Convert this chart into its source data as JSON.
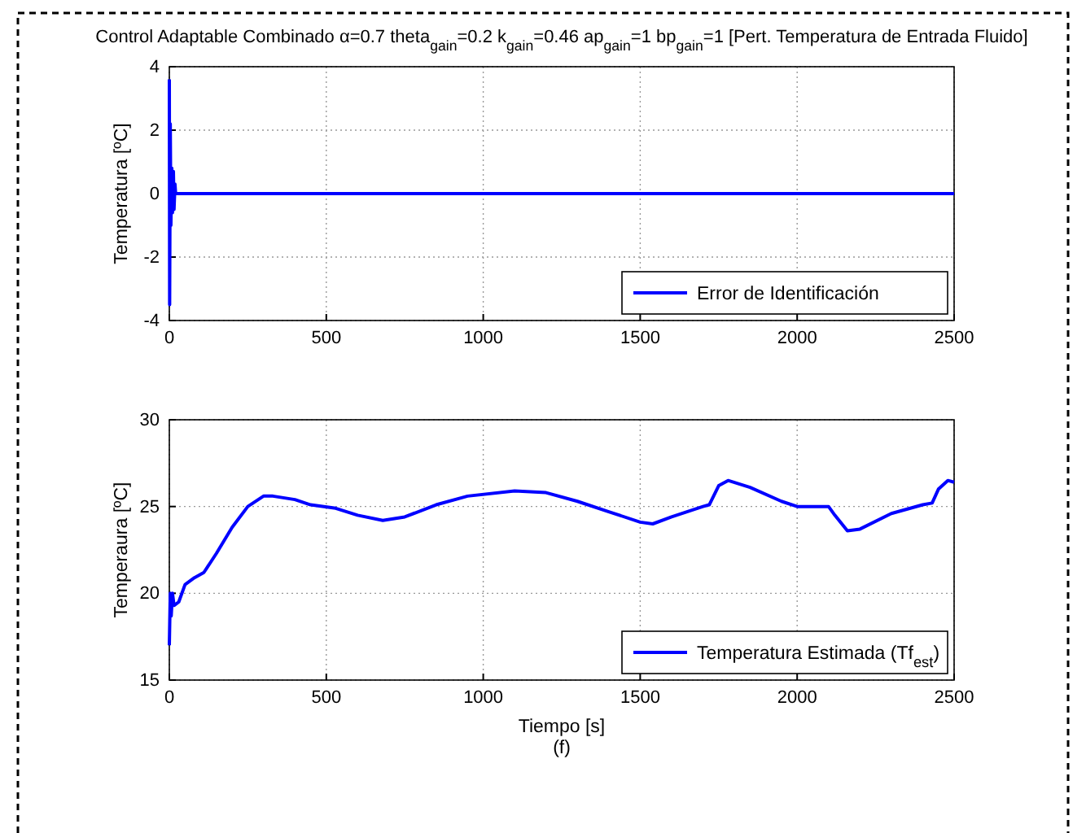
{
  "chart_data": [
    {
      "type": "line",
      "title": "Control Adaptable Combinado α=0.7 theta$_{gain}$=0.2 k$_{gain}$=0.46 ap$_{gain}$=1 bp$_{gain}$=1 [Pert. Temperatura de Entrada Fluido]",
      "ylabel": "Temperatura [ºC]",
      "xlim": [
        0,
        2500
      ],
      "ylim": [
        -4,
        4
      ],
      "xticks": [
        0,
        500,
        1000,
        1500,
        2000,
        2500
      ],
      "yticks": [
        -4,
        -2,
        0,
        2,
        4
      ],
      "grid": true,
      "legend": "bottom right",
      "series": [
        {
          "name": "Error de Identificación",
          "color": "#0000ff",
          "x": [
            0,
            1,
            3,
            5,
            8,
            10,
            13,
            15,
            18,
            20,
            2500
          ],
          "values": [
            3.6,
            -3.5,
            2.2,
            -1,
            0.8,
            -0.6,
            0.7,
            -0.5,
            0.3,
            0,
            0
          ]
        }
      ]
    },
    {
      "type": "line",
      "xlabel": "Tiempo [s]",
      "ylabel": "Temperaura [ºC]",
      "annotations": [
        "(f)"
      ],
      "xlim": [
        0,
        2500
      ],
      "ylim": [
        15,
        30
      ],
      "xticks": [
        0,
        500,
        1000,
        1500,
        2000,
        2500
      ],
      "yticks": [
        15,
        20,
        25,
        30
      ],
      "grid": true,
      "legend": "bottom right",
      "series": [
        {
          "name": "Temperatura Estimada (Tf$_{est}$)",
          "color": "#0000ff",
          "x": [
            0,
            3,
            6,
            10,
            15,
            30,
            50,
            80,
            110,
            150,
            200,
            250,
            300,
            330,
            400,
            450,
            530,
            600,
            680,
            750,
            850,
            950,
            1100,
            1200,
            1300,
            1400,
            1500,
            1540,
            1600,
            1700,
            1720,
            1750,
            1780,
            1850,
            1950,
            2000,
            2100,
            2120,
            2160,
            2200,
            2300,
            2400,
            2430,
            2450,
            2480,
            2500
          ],
          "values": [
            17,
            20,
            18.7,
            20,
            19.3,
            19.5,
            20.5,
            20.9,
            21.2,
            22.3,
            23.8,
            25,
            25.6,
            25.6,
            25.4,
            25.1,
            24.9,
            24.5,
            24.2,
            24.4,
            25.1,
            25.6,
            25.9,
            25.8,
            25.3,
            24.7,
            24.1,
            24,
            24.4,
            25,
            25.1,
            26.2,
            26.5,
            26.1,
            25.3,
            25,
            25,
            24.5,
            23.6,
            23.7,
            24.6,
            25.1,
            25.2,
            26,
            26.5,
            26.4
          ]
        }
      ]
    }
  ]
}
